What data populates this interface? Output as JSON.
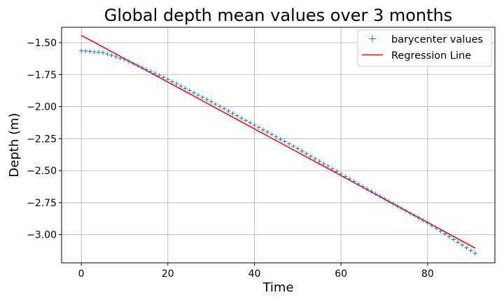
{
  "chart_data": {
    "type": "scatter",
    "title": "Global depth mean values over 3 months",
    "xlabel": "Time",
    "ylabel": "Depth (m)",
    "xlim": [
      -4.55,
      95.55
    ],
    "ylim": [
      -3.22,
      -1.38
    ],
    "xticks": [
      0,
      20,
      40,
      60,
      80
    ],
    "yticks": [
      -1.5,
      -1.75,
      -2.0,
      -2.25,
      -2.5,
      -2.75,
      -3.0
    ],
    "ytick_labels": [
      "−1.50",
      "−1.75",
      "−2.00",
      "−2.25",
      "−2.50",
      "−2.75",
      "−3.00"
    ],
    "xtick_labels": [
      "0",
      "20",
      "40",
      "60",
      "80"
    ],
    "grid": true,
    "legend_position": "top-right",
    "series": [
      {
        "name": "barycenter values",
        "kind": "markers",
        "marker": "+",
        "color": "#1f77b4",
        "x_start": 0,
        "x_end": 91,
        "x_step": 1,
        "y_at_x0": -1.563,
        "y_curve": [
          [
            0,
            -1.563
          ],
          [
            5,
            -1.578
          ],
          [
            10,
            -1.632
          ],
          [
            20,
            -1.787
          ],
          [
            30,
            -1.962
          ],
          [
            40,
            -2.144
          ],
          [
            50,
            -2.327
          ],
          [
            60,
            -2.526
          ],
          [
            70,
            -2.72
          ],
          [
            80,
            -2.908
          ],
          [
            91,
            -3.145
          ]
        ]
      },
      {
        "name": "Regression Line",
        "kind": "line",
        "color": "#ff0000",
        "x": [
          0,
          91
        ],
        "y": [
          -1.443,
          -3.105
        ]
      }
    ]
  }
}
